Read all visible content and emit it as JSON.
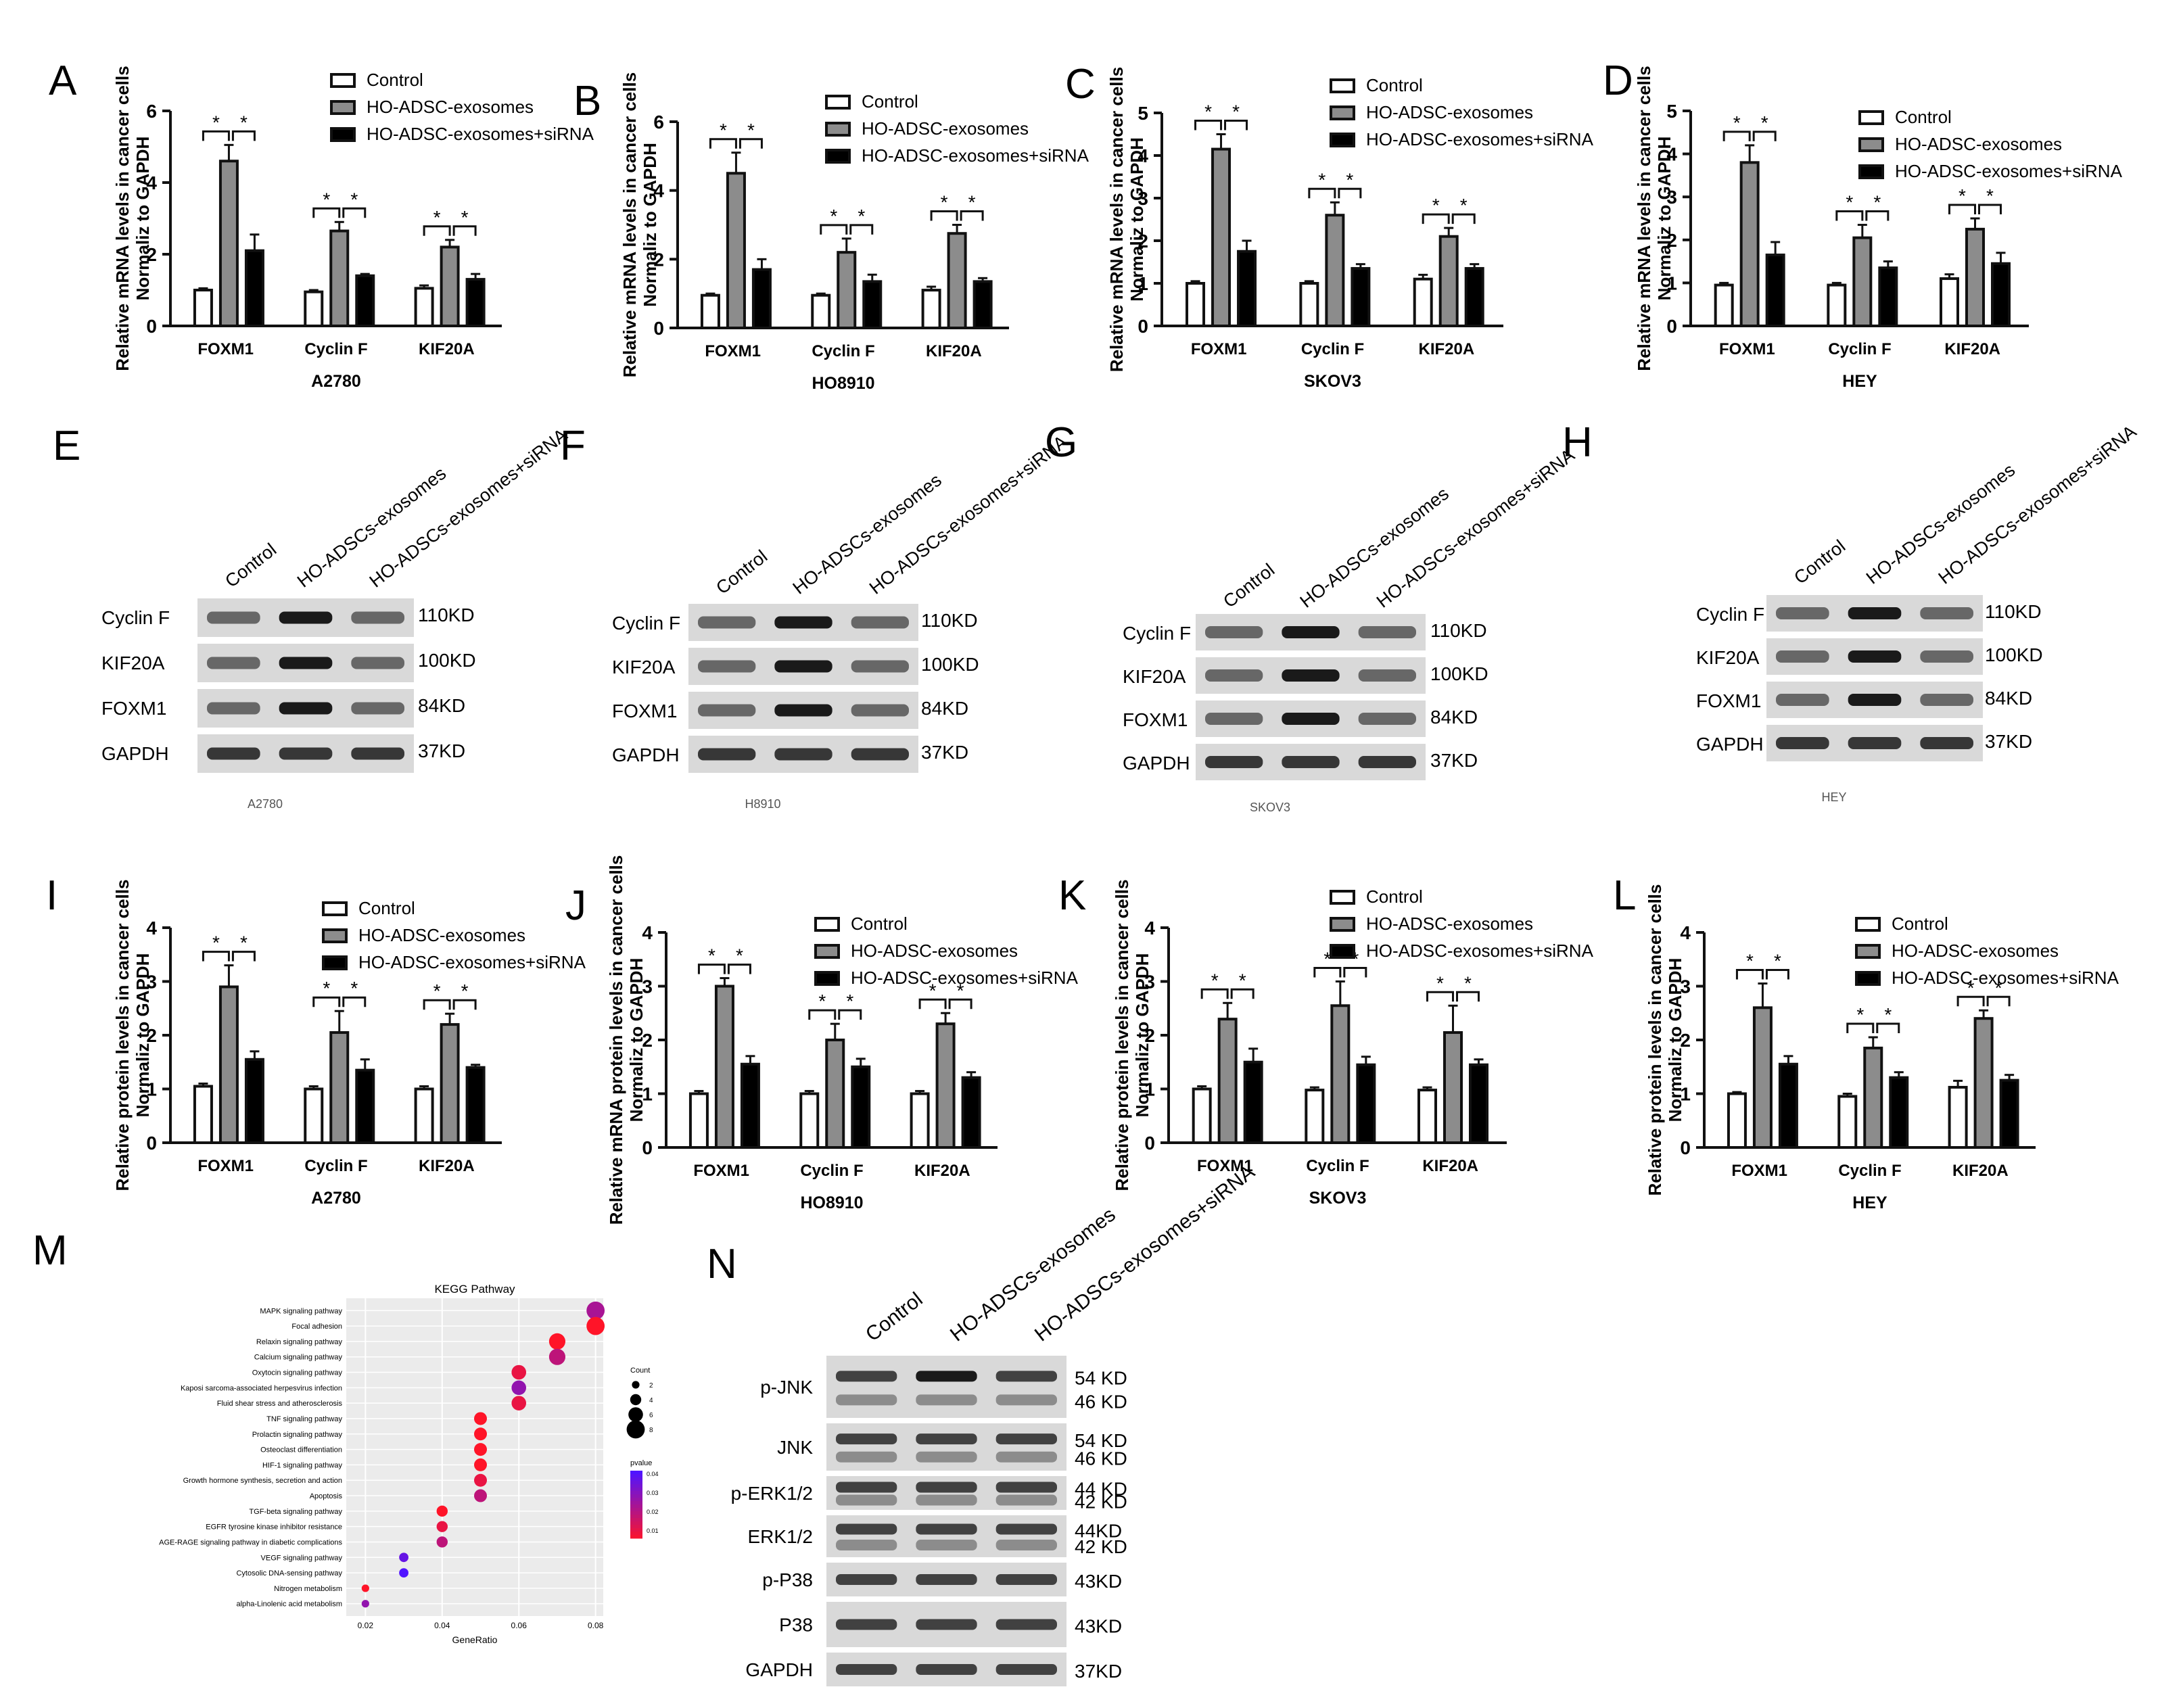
{
  "figure": {
    "legend_three": [
      "Control",
      "HO-ADSC-exosomes",
      "HO-ADSC-exosomes+siRNA"
    ],
    "blot_lane_labels": [
      "Control",
      "HO-ADSCs-exosomes",
      "HO-ADSCs-exosomes+siRNA"
    ],
    "significance_mark": "*",
    "colors": {
      "control": "#ffffff",
      "exo": "#8c8c8c",
      "sirna": "#000000",
      "axis": "#111111"
    }
  },
  "chart_data": [
    {
      "panel": "A",
      "type": "bar",
      "title": "",
      "ylabel_lines": [
        "Relative mRNA levels in cancer cells",
        "Normaliz to GAPDH"
      ],
      "xlabel": "A2780",
      "categories": [
        "FOXM1",
        "Cyclin F",
        "KIF20A"
      ],
      "ylim": [
        0,
        6
      ],
      "yticks": [
        0,
        2,
        4,
        6
      ],
      "series": [
        {
          "name": "Control",
          "values": [
            1.0,
            0.95,
            1.05
          ],
          "err": [
            0.05,
            0.05,
            0.08
          ]
        },
        {
          "name": "HO-ADSC-exosomes",
          "values": [
            4.6,
            2.65,
            2.2
          ],
          "err": [
            0.45,
            0.25,
            0.2
          ]
        },
        {
          "name": "HO-ADSC-exosomes+siRNA",
          "values": [
            2.1,
            1.4,
            1.3
          ],
          "err": [
            0.45,
            0.05,
            0.15
          ]
        }
      ]
    },
    {
      "panel": "B",
      "type": "bar",
      "ylabel_lines": [
        "Relative mRNA levels in cancer cells",
        "Normaliz to GAPDH"
      ],
      "xlabel": "HO8910",
      "categories": [
        "FOXM1",
        "Cyclin F",
        "KIF20A"
      ],
      "ylim": [
        0,
        6
      ],
      "yticks": [
        0,
        2,
        4,
        6
      ],
      "series": [
        {
          "name": "Control",
          "values": [
            0.95,
            0.95,
            1.1
          ],
          "err": [
            0.05,
            0.05,
            0.1
          ]
        },
        {
          "name": "HO-ADSC-exosomes",
          "values": [
            4.5,
            2.2,
            2.75
          ],
          "err": [
            0.6,
            0.4,
            0.25
          ]
        },
        {
          "name": "HO-ADSC-exosomes+siRNA",
          "values": [
            1.7,
            1.35,
            1.35
          ],
          "err": [
            0.3,
            0.2,
            0.1
          ]
        }
      ]
    },
    {
      "panel": "C",
      "type": "bar",
      "ylabel_lines": [
        "Relative mRNA levels in cancer cells",
        "Normaliz to GAPDH"
      ],
      "xlabel": "SKOV3",
      "categories": [
        "FOXM1",
        "Cyclin F",
        "KIF20A"
      ],
      "ylim": [
        0,
        5
      ],
      "yticks": [
        0,
        1,
        2,
        3,
        4,
        5
      ],
      "series": [
        {
          "name": "Control",
          "values": [
            1.0,
            1.0,
            1.1
          ],
          "err": [
            0.05,
            0.05,
            0.1
          ]
        },
        {
          "name": "HO-ADSC-exosomes",
          "values": [
            4.15,
            2.6,
            2.1
          ],
          "err": [
            0.35,
            0.3,
            0.2
          ]
        },
        {
          "name": "HO-ADSC-exosomes+siRNA",
          "values": [
            1.75,
            1.35,
            1.35
          ],
          "err": [
            0.25,
            0.1,
            0.1
          ]
        }
      ]
    },
    {
      "panel": "D",
      "type": "bar",
      "ylabel_lines": [
        "Relative mRNA levels in cancer cells",
        "Normaliz to GAPDH"
      ],
      "xlabel": "HEY",
      "categories": [
        "FOXM1",
        "Cyclin F",
        "KIF20A"
      ],
      "ylim": [
        0,
        5
      ],
      "yticks": [
        0,
        1,
        2,
        3,
        4,
        5
      ],
      "series": [
        {
          "name": "Control",
          "values": [
            0.95,
            0.95,
            1.1
          ],
          "err": [
            0.05,
            0.05,
            0.1
          ]
        },
        {
          "name": "HO-ADSC-exosomes",
          "values": [
            3.8,
            2.05,
            2.25
          ],
          "err": [
            0.4,
            0.3,
            0.25
          ]
        },
        {
          "name": "HO-ADSC-exosomes+siRNA",
          "values": [
            1.65,
            1.35,
            1.45
          ],
          "err": [
            0.3,
            0.15,
            0.25
          ]
        }
      ]
    },
    {
      "panel": "I",
      "type": "bar",
      "ylabel_lines": [
        "Relative protein levels in cancer cells",
        "Normaliz to GAPDH"
      ],
      "xlabel": "A2780",
      "categories": [
        "FOXM1",
        "Cyclin F",
        "KIF20A"
      ],
      "ylim": [
        0,
        4
      ],
      "yticks": [
        0,
        1,
        2,
        3,
        4
      ],
      "series": [
        {
          "name": "Control",
          "values": [
            1.05,
            1.0,
            1.0
          ],
          "err": [
            0.05,
            0.05,
            0.05
          ]
        },
        {
          "name": "HO-ADSC-exosomes",
          "values": [
            2.9,
            2.05,
            2.2
          ],
          "err": [
            0.4,
            0.4,
            0.2
          ]
        },
        {
          "name": "HO-ADSC-exosomes+siRNA",
          "values": [
            1.55,
            1.35,
            1.4
          ],
          "err": [
            0.15,
            0.2,
            0.05
          ]
        }
      ]
    },
    {
      "panel": "J",
      "type": "bar",
      "ylabel_lines": [
        "Relative mRNA protein levels in cancer cells",
        "Normaliz to GAPDH"
      ],
      "xlabel": "HO8910",
      "categories": [
        "FOXM1",
        "Cyclin F",
        "KIF20A"
      ],
      "ylim": [
        0,
        4
      ],
      "yticks": [
        0,
        1,
        2,
        3,
        4
      ],
      "series": [
        {
          "name": "Control",
          "values": [
            1.0,
            1.0,
            1.0
          ],
          "err": [
            0.05,
            0.05,
            0.05
          ]
        },
        {
          "name": "HO-ADSC-exosomes",
          "values": [
            3.0,
            2.0,
            2.3
          ],
          "err": [
            0.15,
            0.3,
            0.2
          ]
        },
        {
          "name": "HO-ADSC-exosomes+siRNA",
          "values": [
            1.55,
            1.5,
            1.3
          ],
          "err": [
            0.15,
            0.15,
            0.1
          ]
        }
      ]
    },
    {
      "panel": "K",
      "type": "bar",
      "ylabel_lines": [
        "Relative protein levels in cancer cells",
        "Normaliz to GAPDH"
      ],
      "xlabel": "SKOV3",
      "categories": [
        "FOXM1",
        "Cyclin F",
        "KIF20A"
      ],
      "ylim": [
        0,
        4
      ],
      "yticks": [
        0,
        1,
        2,
        3,
        4
      ],
      "series": [
        {
          "name": "Control",
          "values": [
            1.0,
            0.98,
            0.98
          ],
          "err": [
            0.05,
            0.05,
            0.05
          ]
        },
        {
          "name": "HO-ADSC-exosomes",
          "values": [
            2.3,
            2.55,
            2.05
          ],
          "err": [
            0.3,
            0.45,
            0.5
          ]
        },
        {
          "name": "HO-ADSC-exosomes+siRNA",
          "values": [
            1.5,
            1.45,
            1.45
          ],
          "err": [
            0.25,
            0.15,
            0.1
          ]
        }
      ]
    },
    {
      "panel": "L",
      "type": "bar",
      "ylabel_lines": [
        "Relative protein levels in cancer cells",
        "Normaliz to GAPDH"
      ],
      "xlabel": "HEY",
      "categories": [
        "FOXM1",
        "Cyclin F",
        "KIF20A"
      ],
      "ylim": [
        0,
        4
      ],
      "yticks": [
        0,
        1,
        2,
        3,
        4
      ],
      "series": [
        {
          "name": "Control",
          "values": [
            1.0,
            0.95,
            1.12
          ],
          "err": [
            0.03,
            0.05,
            0.12
          ]
        },
        {
          "name": "HO-ADSC-exosomes",
          "values": [
            2.6,
            1.85,
            2.4
          ],
          "err": [
            0.45,
            0.2,
            0.15
          ]
        },
        {
          "name": "HO-ADSC-exosomes+siRNA",
          "values": [
            1.55,
            1.3,
            1.25
          ],
          "err": [
            0.15,
            0.1,
            0.1
          ]
        }
      ]
    },
    {
      "panel": "M",
      "type": "scatter",
      "title": "KEGG Pathway",
      "xlabel": "GeneRatio",
      "xlim": [
        0.015,
        0.082
      ],
      "xticks": [
        0.02,
        0.04,
        0.06,
        0.08
      ],
      "size_legend_title": "Count",
      "size_legend_values": [
        2,
        4,
        6,
        8
      ],
      "color_legend_title": "pvalue",
      "color_legend_values": [
        0.04,
        0.03,
        0.02,
        0.01
      ],
      "pathways": [
        {
          "name": "MAPK signaling pathway",
          "ratio": 0.08,
          "count": 8,
          "p": 0.025
        },
        {
          "name": "Focal adhesion",
          "ratio": 0.08,
          "count": 8,
          "p": 0.005
        },
        {
          "name": "Relaxin signaling pathway",
          "ratio": 0.07,
          "count": 7,
          "p": 0.005
        },
        {
          "name": "Calcium signaling pathway",
          "ratio": 0.07,
          "count": 7,
          "p": 0.02
        },
        {
          "name": "Oxytocin signaling pathway",
          "ratio": 0.06,
          "count": 6,
          "p": 0.01
        },
        {
          "name": "Kaposi sarcoma-associated herpesvirus infection",
          "ratio": 0.06,
          "count": 6,
          "p": 0.03
        },
        {
          "name": "Fluid shear stress and atherosclerosis",
          "ratio": 0.06,
          "count": 6,
          "p": 0.01
        },
        {
          "name": "TNF signaling pathway",
          "ratio": 0.05,
          "count": 5,
          "p": 0.005
        },
        {
          "name": "Prolactin signaling pathway",
          "ratio": 0.05,
          "count": 5,
          "p": 0.005
        },
        {
          "name": "Osteoclast differentiation",
          "ratio": 0.05,
          "count": 5,
          "p": 0.005
        },
        {
          "name": "HIF-1 signaling pathway",
          "ratio": 0.05,
          "count": 5,
          "p": 0.005
        },
        {
          "name": "Growth hormone synthesis, secretion and action",
          "ratio": 0.05,
          "count": 5,
          "p": 0.01
        },
        {
          "name": "Apoptosis",
          "ratio": 0.05,
          "count": 5,
          "p": 0.02
        },
        {
          "name": "TGF-beta signaling pathway",
          "ratio": 0.04,
          "count": 4,
          "p": 0.005
        },
        {
          "name": "EGFR tyrosine kinase inhibitor resistance",
          "ratio": 0.04,
          "count": 4,
          "p": 0.01
        },
        {
          "name": "AGE-RAGE signaling pathway in diabetic complications",
          "ratio": 0.04,
          "count": 4,
          "p": 0.02
        },
        {
          "name": "VEGF signaling pathway",
          "ratio": 0.03,
          "count": 3,
          "p": 0.04
        },
        {
          "name": "Cytosolic DNA-sensing pathway",
          "ratio": 0.03,
          "count": 3,
          "p": 0.045
        },
        {
          "name": "Nitrogen metabolism",
          "ratio": 0.02,
          "count": 2,
          "p": 0.005
        },
        {
          "name": "alpha-Linolenic acid metabolism",
          "ratio": 0.02,
          "count": 2,
          "p": 0.03
        }
      ]
    }
  ],
  "blots": [
    {
      "panel": "E",
      "cell": "A2780",
      "rows": [
        {
          "label": "Cyclin F",
          "size": "110KD"
        },
        {
          "label": "KIF20A",
          "size": "100KD"
        },
        {
          "label": "FOXM1",
          "size": "84KD"
        },
        {
          "label": "GAPDH",
          "size": "37KD"
        }
      ]
    },
    {
      "panel": "F",
      "cell": "H8910",
      "rows": [
        {
          "label": "Cyclin F",
          "size": "110KD"
        },
        {
          "label": "KIF20A",
          "size": "100KD"
        },
        {
          "label": "FOXM1",
          "size": "84KD"
        },
        {
          "label": "GAPDH",
          "size": "37KD"
        }
      ]
    },
    {
      "panel": "G",
      "cell": "SKOV3",
      "rows": [
        {
          "label": "Cyclin F",
          "size": "110KD"
        },
        {
          "label": "KIF20A",
          "size": "100KD"
        },
        {
          "label": "FOXM1",
          "size": "84KD"
        },
        {
          "label": "GAPDH",
          "size": "37KD"
        }
      ]
    },
    {
      "panel": "H",
      "cell": "HEY",
      "rows": [
        {
          "label": "Cyclin F",
          "size": "110KD"
        },
        {
          "label": "KIF20A",
          "size": "100KD"
        },
        {
          "label": "FOXM1",
          "size": "84KD"
        },
        {
          "label": "GAPDH",
          "size": "37KD"
        }
      ]
    }
  ],
  "blot_n": {
    "panel": "N",
    "rows": [
      {
        "label": "p-JNK",
        "sizes": [
          "54 KD",
          "46 KD"
        ]
      },
      {
        "label": "JNK",
        "sizes": [
          "54 KD",
          "46 KD"
        ]
      },
      {
        "label": "p-ERK1/2",
        "sizes": [
          "44 KD",
          "42 KD"
        ]
      },
      {
        "label": "ERK1/2",
        "sizes": [
          "44KD",
          "42 KD"
        ]
      },
      {
        "label": "p-P38",
        "sizes": [
          "43KD"
        ]
      },
      {
        "label": "P38",
        "sizes": [
          "43KD"
        ]
      },
      {
        "label": "GAPDH",
        "sizes": [
          "37KD"
        ]
      }
    ]
  }
}
